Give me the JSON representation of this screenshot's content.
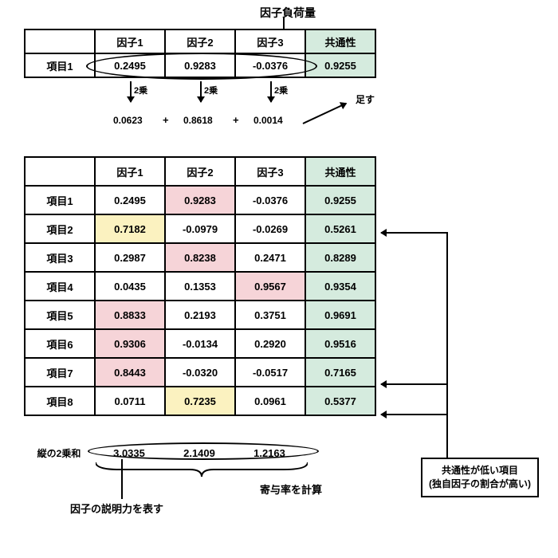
{
  "labels": {
    "factor_loading": "因子負荷量",
    "f1": "因子1",
    "f2": "因子2",
    "f3": "因子3",
    "communality": "共通性",
    "item_prefix": "項目",
    "squared": "2乗",
    "add": "足す",
    "vertical_ss": "縦の2乗和",
    "contribution": "寄与率を計算",
    "explains": "因子の説明力を表す",
    "low_comm_1": "共通性が低い項目",
    "low_comm_2": "(独自因子の割合が高い)"
  },
  "table1": {
    "item": "項目1",
    "v": [
      "0.2495",
      "0.9283",
      "-0.0376"
    ],
    "comm": "0.9255"
  },
  "squared_vals": [
    "0.0623",
    "0.8618",
    "0.0014"
  ],
  "table2": {
    "items": [
      "項目1",
      "項目2",
      "項目3",
      "項目4",
      "項目5",
      "項目6",
      "項目7",
      "項目8"
    ],
    "rows": [
      [
        "0.2495",
        "0.9283",
        "-0.0376",
        "0.9255"
      ],
      [
        "0.7182",
        "-0.0979",
        "-0.0269",
        "0.5261"
      ],
      [
        "0.2987",
        "0.8238",
        "0.2471",
        "0.8289"
      ],
      [
        "0.0435",
        "0.1353",
        "0.9567",
        "0.9354"
      ],
      [
        "0.8833",
        "0.2193",
        "0.3751",
        "0.9691"
      ],
      [
        "0.9306",
        "-0.0134",
        "0.2920",
        "0.9516"
      ],
      [
        "0.8443",
        "-0.0320",
        "-0.0517",
        "0.7165"
      ],
      [
        "0.0711",
        "0.7235",
        "0.0961",
        "0.5377"
      ]
    ],
    "highlights": {
      "pink": [
        [
          0,
          1
        ],
        [
          2,
          1
        ],
        [
          3,
          2
        ],
        [
          4,
          0
        ],
        [
          5,
          0
        ],
        [
          6,
          0
        ]
      ],
      "yellow": [
        [
          1,
          0
        ],
        [
          7,
          1
        ]
      ]
    }
  },
  "sums": [
    "3.0335",
    "2.1409",
    "1.2163"
  ],
  "arrow_rows": [
    1,
    6,
    7
  ],
  "colors": {
    "pink": "#f6d4d8",
    "yellow": "#fbf2c0",
    "green": "#d5ebde",
    "border": "#000000",
    "bg": "#ffffff"
  }
}
